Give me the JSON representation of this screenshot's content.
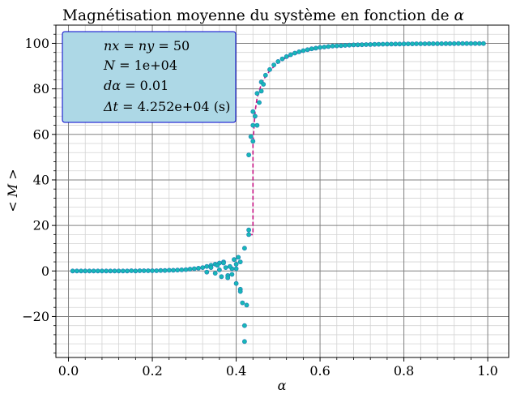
{
  "chart_data": {
    "type": "scatter",
    "title": "Magnétisation moyenne du système en fonction de",
    "title_symbol": "α",
    "xlabel": "α",
    "ylabel": "< M >",
    "xlim": [
      -0.03,
      1.05
    ],
    "ylim": [
      -38,
      108
    ],
    "x_ticks": [
      0.0,
      0.2,
      0.4,
      0.6,
      0.8,
      1.0
    ],
    "x_tick_labels": [
      "0.0",
      "0.2",
      "0.4",
      "0.6",
      "0.8",
      "1.0"
    ],
    "y_ticks": [
      -20,
      0,
      20,
      40,
      60,
      80,
      100
    ],
    "y_tick_labels": [
      "−20",
      "0",
      "20",
      "40",
      "60",
      "80",
      "100"
    ],
    "grid": "major and minor",
    "legend": {
      "placement": "top-left",
      "background": "#add8e6",
      "border": "#0000cc",
      "lines": [
        {
          "math": "nx = ny",
          "text": " = 50"
        },
        {
          "math": "N",
          "text": " = 1e+04"
        },
        {
          "math": "dα",
          "text": " = 0.01"
        },
        {
          "math": "Δt",
          "text": " = 4.252e+04 (s)"
        }
      ]
    },
    "colors": {
      "points": "#17b8b8",
      "points_edge": "#1f77b4",
      "fit": "#c71585",
      "major_grid": "#808080",
      "minor_grid": "#d3d3d3"
    },
    "series": [
      {
        "kind": "points",
        "x": [
          0.01,
          0.02,
          0.03,
          0.04,
          0.05,
          0.06,
          0.07,
          0.08,
          0.09,
          0.1,
          0.11,
          0.12,
          0.13,
          0.14,
          0.15,
          0.16,
          0.17,
          0.18,
          0.19,
          0.2,
          0.21,
          0.22,
          0.23,
          0.24,
          0.25,
          0.26,
          0.27,
          0.28,
          0.29,
          0.3,
          0.31,
          0.32,
          0.33,
          0.34,
          0.35,
          0.36,
          0.37,
          0.38,
          0.39,
          0.4,
          0.41,
          0.42,
          0.43,
          0.44,
          0.45,
          0.46,
          0.47,
          0.48,
          0.49,
          0.5,
          0.51,
          0.52,
          0.53,
          0.54,
          0.55,
          0.56,
          0.57,
          0.58,
          0.59,
          0.6,
          0.61,
          0.62,
          0.63,
          0.64,
          0.65,
          0.66,
          0.67,
          0.68,
          0.69,
          0.7,
          0.71,
          0.72,
          0.73,
          0.74,
          0.75,
          0.76,
          0.77,
          0.78,
          0.79,
          0.8,
          0.81,
          0.82,
          0.83,
          0.84,
          0.85,
          0.86,
          0.87,
          0.88,
          0.89,
          0.9,
          0.91,
          0.92,
          0.93,
          0.94,
          0.95,
          0.96,
          0.97,
          0.98,
          0.99
        ],
        "y": [
          0.0,
          0.0,
          0.0,
          0.0,
          0.0,
          0.0,
          0.0,
          0.0,
          0.0,
          0.0,
          0.0,
          0.0,
          0.0,
          0.0,
          0.1,
          0.0,
          0.1,
          0.1,
          0.1,
          0.1,
          0.1,
          0.2,
          0.2,
          0.3,
          0.3,
          0.4,
          0.5,
          0.6,
          0.8,
          1.0,
          1.2,
          1.5,
          2.0,
          2.5,
          3.0,
          3.5,
          4.0,
          -2.0,
          1.0,
          1.0,
          -8.0,
          -31.0,
          16.0,
          70.0,
          78.0,
          83.0,
          86.0,
          88.5,
          90.5,
          92.0,
          93.2,
          94.2,
          95.0,
          95.7,
          96.3,
          96.8,
          97.2,
          97.6,
          97.9,
          98.2,
          98.4,
          98.6,
          98.8,
          98.9,
          99.0,
          99.1,
          99.2,
          99.3,
          99.35,
          99.4,
          99.45,
          99.5,
          99.55,
          99.6,
          99.62,
          99.65,
          99.68,
          99.7,
          99.72,
          99.74,
          99.76,
          99.78,
          99.8,
          99.81,
          99.82,
          99.83,
          99.84,
          99.85,
          99.86,
          99.87,
          99.88,
          99.89,
          99.9,
          99.9,
          99.91,
          99.92,
          99.92,
          99.93,
          99.93
        ]
      },
      {
        "kind": "points",
        "x": [
          0.33,
          0.34,
          0.35,
          0.355,
          0.36,
          0.365,
          0.37,
          0.375,
          0.38,
          0.385,
          0.39,
          0.395,
          0.4,
          0.4,
          0.405,
          0.41,
          0.41,
          0.415,
          0.42,
          0.42,
          0.425,
          0.43,
          0.43,
          0.435,
          0.44,
          0.44,
          0.445,
          0.45,
          0.455,
          0.46,
          0.465
        ],
        "y": [
          -0.5,
          1.5,
          -1.0,
          2.5,
          0.5,
          -2.5,
          3.5,
          1.5,
          -3.0,
          2.0,
          -1.5,
          5.0,
          3.0,
          -5.5,
          6.0,
          -9.0,
          4.0,
          -14.0,
          -24.0,
          10.0,
          -15.0,
          18.0,
          51.0,
          59.0,
          57.0,
          64.0,
          68.0,
          64.0,
          74.0,
          79.0,
          82.0
        ]
      },
      {
        "kind": "dashed-line",
        "x": [
          0.43,
          0.44,
          0.44,
          0.445,
          0.45,
          0.46,
          0.47,
          0.48,
          0.5,
          0.52,
          0.55,
          0.6,
          0.65,
          0.7,
          0.8,
          0.9,
          1.0
        ],
        "y": [
          16.0,
          16.0,
          56.0,
          70.0,
          76.0,
          82.0,
          85.5,
          88.0,
          91.5,
          93.8,
          96.0,
          98.0,
          98.9,
          99.3,
          99.7,
          99.85,
          99.93
        ]
      }
    ]
  }
}
